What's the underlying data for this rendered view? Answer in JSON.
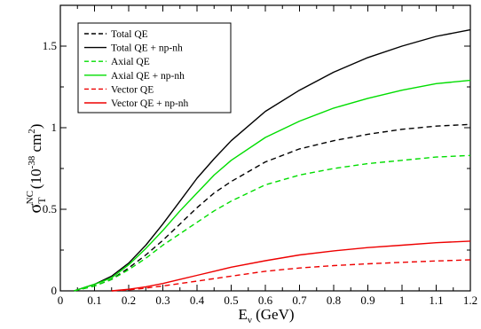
{
  "chart_data": {
    "type": "line",
    "xlabel": "E",
    "xlabel_sub": "ν",
    "xlabel_unit": " (GeV)",
    "ylabel_main": "σ",
    "ylabel_sub": "T",
    "ylabel_sup": "NC",
    "ylabel_unit_open": "(10",
    "ylabel_unit_exp": "-38",
    "ylabel_unit_mid": " cm",
    "ylabel_unit_exp2": "2",
    "ylabel_unit_close": ")",
    "xlim": [
      0,
      1.2
    ],
    "ylim": [
      0,
      1.75
    ],
    "xticks": [
      0,
      0.1,
      0.2,
      0.3,
      0.4,
      0.5,
      0.6,
      0.7,
      0.8,
      0.9,
      1,
      1.1,
      1.2
    ],
    "xtick_labels": [
      "0",
      "0.1",
      "0.2",
      "0.3",
      "0.4",
      "0.5",
      "0.6",
      "0.7",
      "0.8",
      "0.9",
      "1",
      "1.1",
      "1.2"
    ],
    "yticks": [
      0,
      0.5,
      1,
      1.5
    ],
    "ytick_labels": [
      "0",
      "0.5",
      "1",
      "1.5"
    ],
    "legend_position": "top-left",
    "grid": false,
    "series": [
      {
        "name": "Total QE",
        "color": "#000000",
        "dashed": true,
        "x": [
          0.04,
          0.1,
          0.15,
          0.2,
          0.25,
          0.3,
          0.35,
          0.4,
          0.45,
          0.5,
          0.6,
          0.7,
          0.8,
          0.9,
          1.0,
          1.1,
          1.2
        ],
        "y": [
          0.0,
          0.03,
          0.07,
          0.14,
          0.22,
          0.31,
          0.41,
          0.51,
          0.6,
          0.67,
          0.79,
          0.87,
          0.92,
          0.96,
          0.99,
          1.01,
          1.02
        ]
      },
      {
        "name": "Total QE + np-nh",
        "color": "#000000",
        "dashed": false,
        "x": [
          0.04,
          0.1,
          0.15,
          0.2,
          0.25,
          0.3,
          0.35,
          0.4,
          0.45,
          0.5,
          0.6,
          0.7,
          0.8,
          0.9,
          1.0,
          1.1,
          1.2
        ],
        "y": [
          0.0,
          0.04,
          0.09,
          0.17,
          0.28,
          0.41,
          0.55,
          0.69,
          0.81,
          0.92,
          1.1,
          1.23,
          1.34,
          1.43,
          1.5,
          1.56,
          1.6
        ]
      },
      {
        "name": "Axial QE",
        "color": "#00dd00",
        "dashed": true,
        "x": [
          0.04,
          0.1,
          0.15,
          0.2,
          0.25,
          0.3,
          0.35,
          0.4,
          0.45,
          0.5,
          0.6,
          0.7,
          0.8,
          0.9,
          1.0,
          1.1,
          1.2
        ],
        "y": [
          0.0,
          0.03,
          0.07,
          0.13,
          0.2,
          0.28,
          0.35,
          0.42,
          0.49,
          0.55,
          0.65,
          0.71,
          0.75,
          0.78,
          0.8,
          0.82,
          0.83
        ]
      },
      {
        "name": "Axial QE + np-nh",
        "color": "#00dd00",
        "dashed": false,
        "x": [
          0.04,
          0.1,
          0.15,
          0.2,
          0.25,
          0.3,
          0.35,
          0.4,
          0.45,
          0.5,
          0.6,
          0.7,
          0.8,
          0.9,
          1.0,
          1.1,
          1.2
        ],
        "y": [
          0.0,
          0.04,
          0.08,
          0.16,
          0.26,
          0.37,
          0.49,
          0.6,
          0.71,
          0.8,
          0.94,
          1.04,
          1.12,
          1.18,
          1.23,
          1.27,
          1.29
        ]
      },
      {
        "name": "Vector QE",
        "color": "#ee0000",
        "dashed": true,
        "x": [
          0.15,
          0.2,
          0.25,
          0.3,
          0.35,
          0.4,
          0.45,
          0.5,
          0.6,
          0.7,
          0.8,
          0.9,
          1.0,
          1.1,
          1.2
        ],
        "y": [
          0.0,
          0.006,
          0.017,
          0.03,
          0.045,
          0.06,
          0.075,
          0.09,
          0.12,
          0.14,
          0.155,
          0.166,
          0.175,
          0.183,
          0.19
        ]
      },
      {
        "name": "Vector QE + np-nh",
        "color": "#ee0000",
        "dashed": false,
        "x": [
          0.15,
          0.2,
          0.25,
          0.3,
          0.35,
          0.4,
          0.45,
          0.5,
          0.6,
          0.7,
          0.8,
          0.9,
          1.0,
          1.1,
          1.2
        ],
        "y": [
          0.0,
          0.01,
          0.025,
          0.045,
          0.07,
          0.095,
          0.12,
          0.145,
          0.185,
          0.22,
          0.245,
          0.265,
          0.28,
          0.295,
          0.305
        ]
      }
    ]
  }
}
